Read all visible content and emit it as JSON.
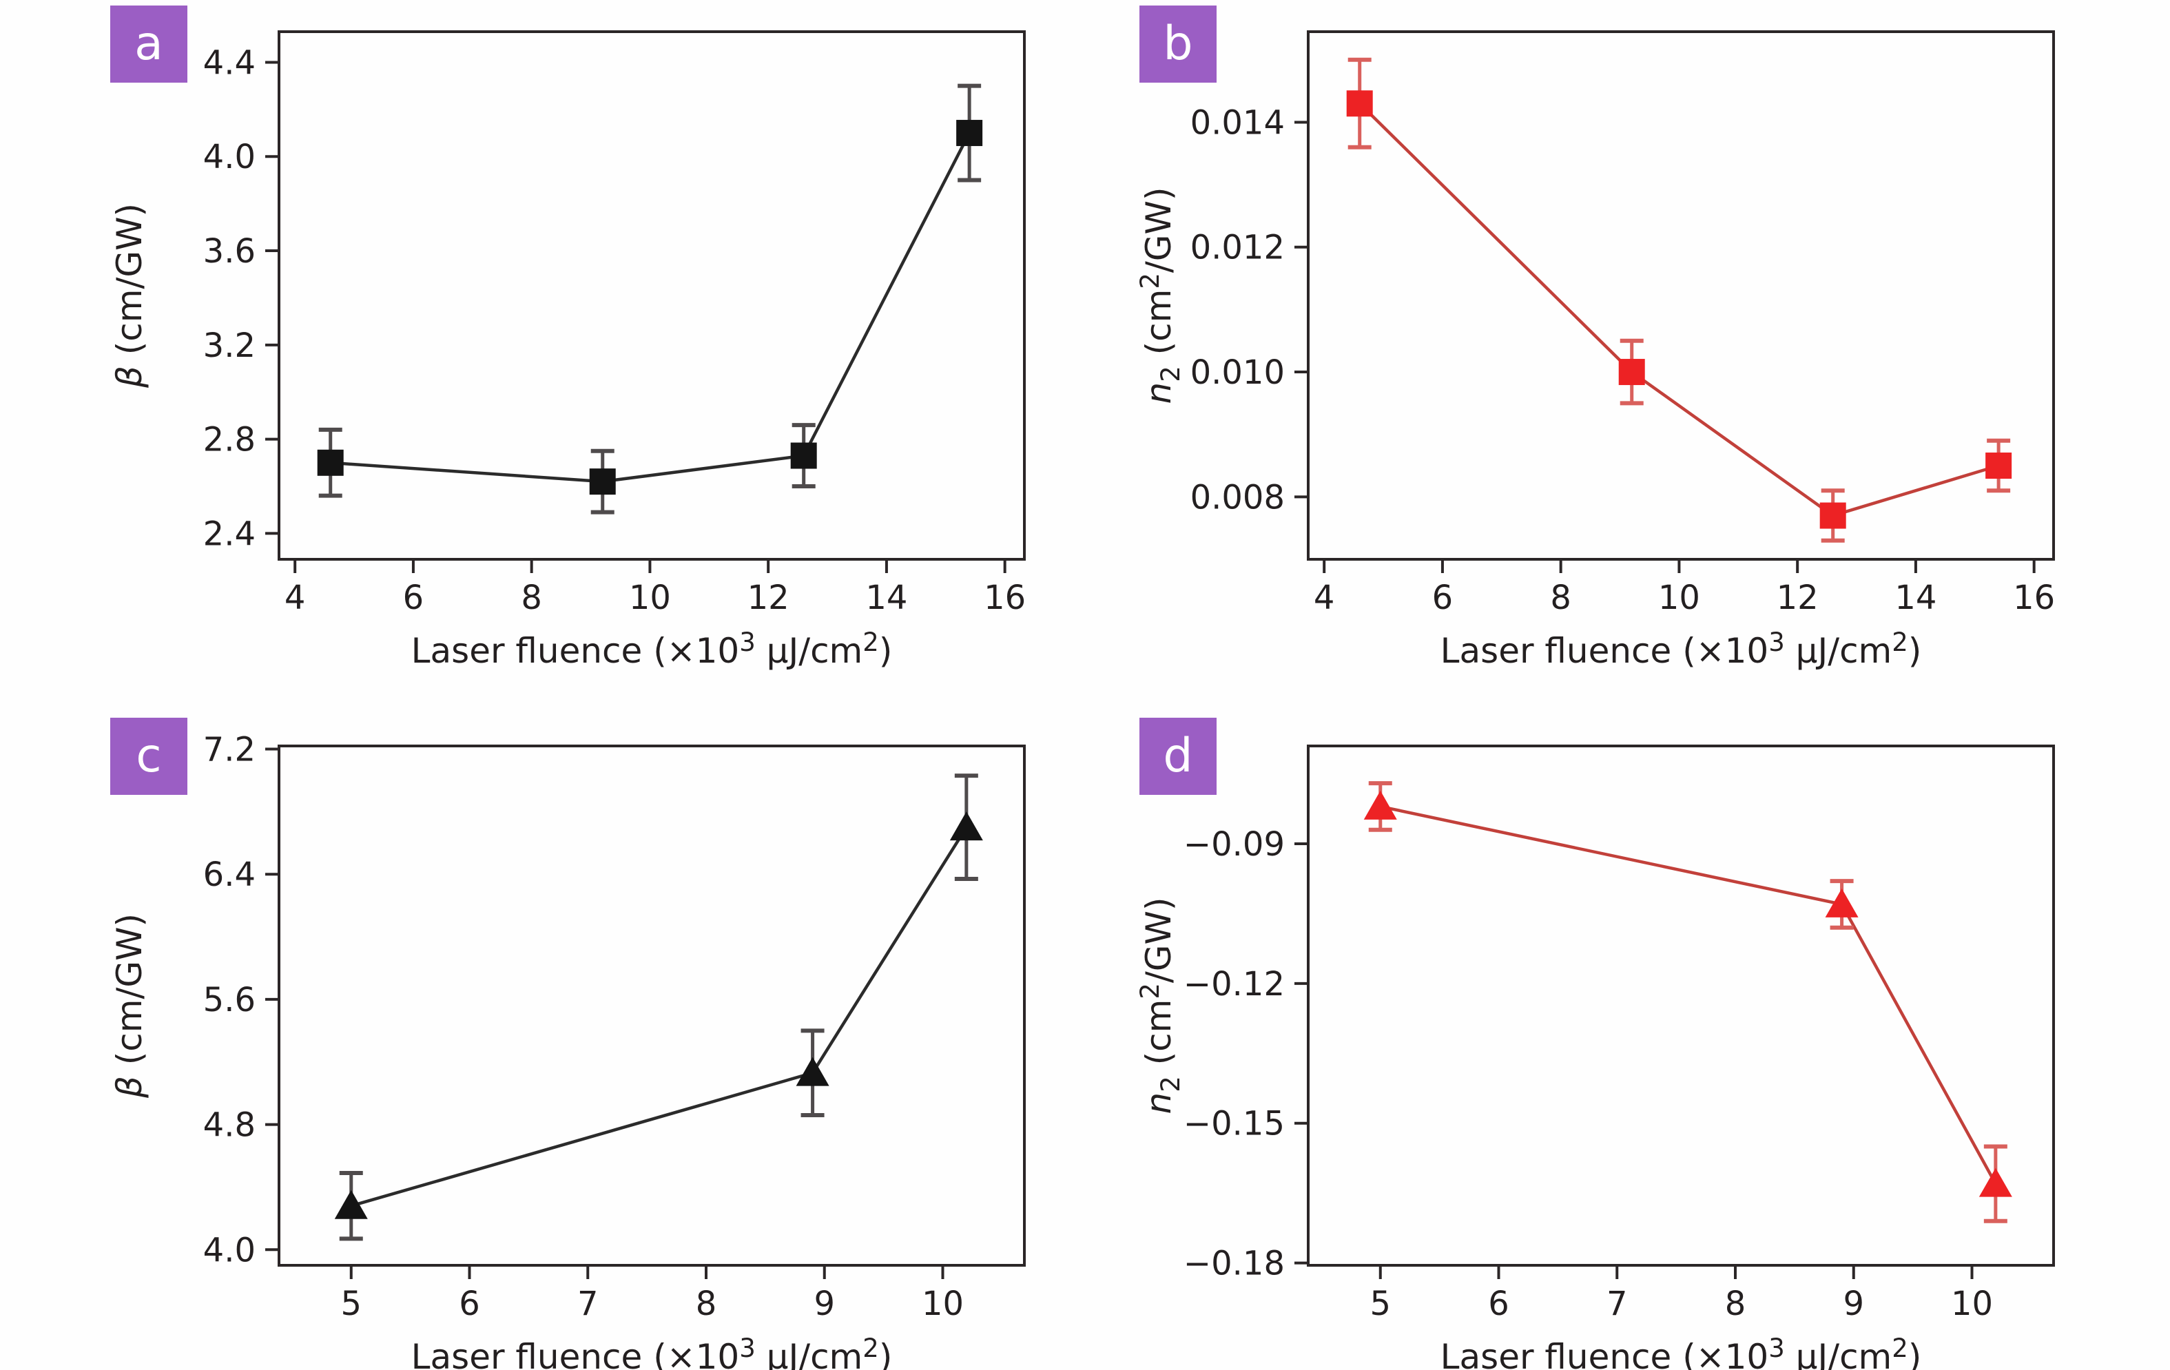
{
  "panels": [
    {
      "tag": "a"
    },
    {
      "tag": "b"
    },
    {
      "tag": "c"
    },
    {
      "tag": "d"
    }
  ],
  "colors": {
    "accent": "#9b5ec4",
    "axis": "#2b2627",
    "text": "#231f20",
    "black_line": "#2b2b2b",
    "black_marker": "#141414",
    "black_error": "#4f4b4c",
    "red_line": "#c2403a",
    "red_marker": "#ed2224",
    "red_error": "#d9605c",
    "background": "#fefefe"
  },
  "chart_data": [
    {
      "panel": "a",
      "type": "line",
      "marker": "square",
      "xlabel_parts": [
        {
          "t": "Laser fluence (×10"
        },
        {
          "t": "3",
          "sup": true
        },
        {
          "t": " μJ/cm"
        },
        {
          "t": "2",
          "sup": true
        },
        {
          "t": ")"
        }
      ],
      "ylabel_parts": [
        {
          "t": "β",
          "i": true
        },
        {
          "t": " (cm/GW)"
        }
      ],
      "xlim": [
        3.73,
        16.33
      ],
      "ylim": [
        2.29,
        4.53
      ],
      "grid": false,
      "legend": null,
      "xticks": [
        {
          "v": 4,
          "l": "4"
        },
        {
          "v": 6,
          "l": "6"
        },
        {
          "v": 8,
          "l": "8"
        },
        {
          "v": 10,
          "l": "10"
        },
        {
          "v": 12,
          "l": "12"
        },
        {
          "v": 14,
          "l": "14"
        },
        {
          "v": 16,
          "l": "16"
        }
      ],
      "yticks": [
        {
          "v": 2.4,
          "l": "2.4"
        },
        {
          "v": 2.8,
          "l": "2.8"
        },
        {
          "v": 3.2,
          "l": "3.2"
        },
        {
          "v": 3.6,
          "l": "3.6"
        },
        {
          "v": 4.0,
          "l": "4.0"
        },
        {
          "v": 4.4,
          "l": "4.4"
        }
      ],
      "points": [
        {
          "x": 4.6,
          "y": 2.7,
          "e": 0.14
        },
        {
          "x": 9.2,
          "y": 2.62,
          "e": 0.13
        },
        {
          "x": 12.6,
          "y": 2.73,
          "e": 0.13
        },
        {
          "x": 15.4,
          "y": 4.1,
          "e": 0.2
        }
      ],
      "line_color": "#2b2b2b",
      "marker_color": "#141414",
      "error_color": "#4f4b4c"
    },
    {
      "panel": "b",
      "type": "line",
      "marker": "square",
      "xlabel_parts": [
        {
          "t": "Laser fluence (×10"
        },
        {
          "t": "3",
          "sup": true
        },
        {
          "t": " μJ/cm"
        },
        {
          "t": "2",
          "sup": true
        },
        {
          "t": ")"
        }
      ],
      "ylabel_parts": [
        {
          "t": "n",
          "i": true
        },
        {
          "t": "2",
          "sub": true
        },
        {
          "t": " (cm"
        },
        {
          "t": "2",
          "sup": true
        },
        {
          "t": "/GW)"
        }
      ],
      "xlim": [
        3.73,
        16.33
      ],
      "ylim": [
        0.007,
        0.01545
      ],
      "grid": false,
      "legend": null,
      "xticks": [
        {
          "v": 4,
          "l": "4"
        },
        {
          "v": 6,
          "l": "6"
        },
        {
          "v": 8,
          "l": "8"
        },
        {
          "v": 10,
          "l": "10"
        },
        {
          "v": 12,
          "l": "12"
        },
        {
          "v": 14,
          "l": "14"
        },
        {
          "v": 16,
          "l": "16"
        }
      ],
      "yticks": [
        {
          "v": 0.008,
          "l": "0.008"
        },
        {
          "v": 0.01,
          "l": "0.010"
        },
        {
          "v": 0.012,
          "l": "0.012"
        },
        {
          "v": 0.014,
          "l": "0.014"
        }
      ],
      "points": [
        {
          "x": 4.6,
          "y": 0.0143,
          "e": 0.0007
        },
        {
          "x": 9.2,
          "y": 0.01,
          "e": 0.0005
        },
        {
          "x": 12.6,
          "y": 0.0077,
          "e": 0.0004
        },
        {
          "x": 15.4,
          "y": 0.0085,
          "e": 0.0004
        }
      ],
      "line_color": "#c2403a",
      "marker_color": "#ed2224",
      "error_color": "#d9605c"
    },
    {
      "panel": "c",
      "type": "line",
      "marker": "triangle",
      "xlabel_parts": [
        {
          "t": "Laser fluence (×10"
        },
        {
          "t": "3",
          "sup": true
        },
        {
          "t": " μJ/cm"
        },
        {
          "t": "2",
          "sup": true
        },
        {
          "t": ")"
        }
      ],
      "ylabel_parts": [
        {
          "t": "β",
          "i": true
        },
        {
          "t": " (cm/GW)"
        }
      ],
      "xlim": [
        4.39,
        10.69
      ],
      "ylim": [
        3.9,
        7.22
      ],
      "grid": false,
      "legend": null,
      "xticks": [
        {
          "v": 5,
          "l": "5"
        },
        {
          "v": 6,
          "l": "6"
        },
        {
          "v": 7,
          "l": "7"
        },
        {
          "v": 8,
          "l": "8"
        },
        {
          "v": 9,
          "l": "9"
        },
        {
          "v": 10,
          "l": "10"
        }
      ],
      "yticks": [
        {
          "v": 4.0,
          "l": "4.0"
        },
        {
          "v": 4.8,
          "l": "4.8"
        },
        {
          "v": 5.6,
          "l": "5.6"
        },
        {
          "v": 6.4,
          "l": "6.4"
        },
        {
          "v": 7.2,
          "l": "7.2"
        }
      ],
      "points": [
        {
          "x": 5.0,
          "y": 4.28,
          "e": 0.21
        },
        {
          "x": 8.9,
          "y": 5.13,
          "e": 0.27
        },
        {
          "x": 10.2,
          "y": 6.7,
          "e": 0.33
        }
      ],
      "line_color": "#2b2b2b",
      "marker_color": "#141414",
      "error_color": "#4f4b4c"
    },
    {
      "panel": "d",
      "type": "line",
      "marker": "triangle",
      "xlabel_parts": [
        {
          "t": "Laser fluence (×10"
        },
        {
          "t": "3",
          "sup": true
        },
        {
          "t": " μJ/cm"
        },
        {
          "t": "2",
          "sup": true
        },
        {
          "t": ")"
        }
      ],
      "ylabel_parts": [
        {
          "t": "n",
          "i": true
        },
        {
          "t": "2",
          "sub": true
        },
        {
          "t": " (cm"
        },
        {
          "t": "2",
          "sup": true
        },
        {
          "t": "/GW)"
        }
      ],
      "xlim": [
        4.39,
        10.69
      ],
      "ylim": [
        -0.1805,
        -0.069
      ],
      "grid": false,
      "legend": null,
      "xticks": [
        {
          "v": 5,
          "l": "5"
        },
        {
          "v": 6,
          "l": "6"
        },
        {
          "v": 7,
          "l": "7"
        },
        {
          "v": 8,
          "l": "8"
        },
        {
          "v": 9,
          "l": "9"
        },
        {
          "v": 10,
          "l": "10"
        }
      ],
      "yticks": [
        {
          "v": -0.09,
          "l": "−0.09"
        },
        {
          "v": -0.12,
          "l": "−0.12"
        },
        {
          "v": -0.15,
          "l": "−0.15"
        },
        {
          "v": -0.18,
          "l": "−0.18"
        }
      ],
      "points": [
        {
          "x": 5.0,
          "y": -0.082,
          "e": 0.005
        },
        {
          "x": 8.9,
          "y": -0.103,
          "e": 0.005
        },
        {
          "x": 10.2,
          "y": -0.163,
          "e": 0.008
        }
      ],
      "line_color": "#c2403a",
      "marker_color": "#ed2224",
      "error_color": "#d9605c"
    }
  ]
}
